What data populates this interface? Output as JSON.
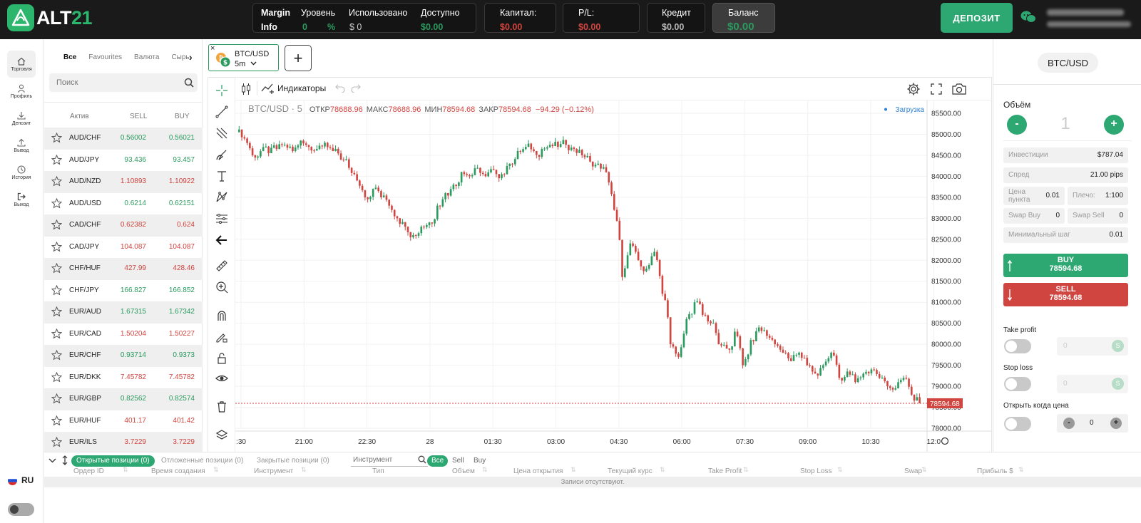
{
  "app": {
    "logo_prefix": "ALT",
    "logo_suffix": "21"
  },
  "header": {
    "margin_label": "Margin",
    "info_label": "Info",
    "level_label": "Уровень",
    "level_value": "0",
    "level_unit": "%",
    "used_label": "Использовано",
    "used_value": "$ 0",
    "available_label": "Доступно",
    "available_value": "$0.00",
    "capital_label": "Капитал:",
    "capital_value": "$0.00",
    "pl_label": "P/L:",
    "pl_value": "$0.00",
    "credit_label": "Кредит",
    "credit_value": "$0.00",
    "balance_label": "Баланс",
    "balance_value": "$0.00",
    "deposit_button": "ДЕПОЗИТ"
  },
  "nav": {
    "items": [
      {
        "label": "Торговля",
        "icon": "home-icon"
      },
      {
        "label": "Профиль",
        "icon": "user-icon"
      },
      {
        "label": "Депозит",
        "icon": "download-icon"
      },
      {
        "label": "Вывод",
        "icon": "upload-icon"
      },
      {
        "label": "История",
        "icon": "clock-icon"
      },
      {
        "label": "Выход",
        "icon": "logout-icon"
      }
    ],
    "language": "RU"
  },
  "market": {
    "tabs": [
      "Все",
      "Favourites",
      "Валюта",
      "Сырь"
    ],
    "search_placeholder": "Поиск",
    "columns": {
      "asset": "Актив",
      "sell": "SELL",
      "buy": "BUY"
    },
    "rows": [
      {
        "symbol": "AUD/CHF",
        "sell": "0.56002",
        "buy": "0.56021",
        "dir": "up"
      },
      {
        "symbol": "AUD/JPY",
        "sell": "93.436",
        "buy": "93.457",
        "dir": "up"
      },
      {
        "symbol": "AUD/NZD",
        "sell": "1.10893",
        "buy": "1.10922",
        "dir": "down"
      },
      {
        "symbol": "AUD/USD",
        "sell": "0.6214",
        "buy": "0.62151",
        "dir": "up"
      },
      {
        "symbol": "CAD/CHF",
        "sell": "0.62382",
        "buy": "0.624",
        "dir": "down"
      },
      {
        "symbol": "CAD/JPY",
        "sell": "104.087",
        "buy": "104.087",
        "dir": "down"
      },
      {
        "symbol": "CHF/HUF",
        "sell": "427.99",
        "buy": "428.46",
        "dir": "down"
      },
      {
        "symbol": "CHF/JPY",
        "sell": "166.827",
        "buy": "166.852",
        "dir": "up"
      },
      {
        "symbol": "EUR/AUD",
        "sell": "1.67315",
        "buy": "1.67342",
        "dir": "up"
      },
      {
        "symbol": "EUR/CAD",
        "sell": "1.50204",
        "buy": "1.50227",
        "dir": "down"
      },
      {
        "symbol": "EUR/CHF",
        "sell": "0.93714",
        "buy": "0.9373",
        "dir": "up"
      },
      {
        "symbol": "EUR/DKK",
        "sell": "7.45782",
        "buy": "7.45782",
        "dir": "down"
      },
      {
        "symbol": "EUR/GBP",
        "sell": "0.82562",
        "buy": "0.82574",
        "dir": "up"
      },
      {
        "symbol": "EUR/HUF",
        "sell": "401.17",
        "buy": "401.42",
        "dir": "down"
      },
      {
        "symbol": "EUR/ILS",
        "sell": "3.7229",
        "buy": "3.7229",
        "dir": "down"
      }
    ]
  },
  "chart_tab": {
    "symbol": "BTC/USD",
    "interval": "5m",
    "close_glyph": "×",
    "add_glyph": "+"
  },
  "chart_toolbar": {
    "indicators": "Индикаторы"
  },
  "chart_legend": {
    "title": "BTC/USD · 5",
    "open_label": "ОТКР",
    "open": "78688.96",
    "high_label": "МАКС",
    "high": "78688.96",
    "low_label": "МИН",
    "low": "78594.68",
    "close_label": "ЗАКР",
    "close": "78594.68",
    "change": "−94.29 (−0.12%)",
    "loading": "Загрузка"
  },
  "chart_data": {
    "type": "candlestick",
    "symbol": "BTC/USD",
    "interval": "5",
    "x_tick_labels": [
      ":30",
      "21:00",
      "22:30",
      "28",
      "01:30",
      "03:00",
      "04:30",
      "06:00",
      "07:30",
      "09:00",
      "10:30",
      "12:0"
    ],
    "y_tick_labels": [
      "85500.00",
      "85000.00",
      "84500.00",
      "84000.00",
      "83500.00",
      "83000.00",
      "82500.00",
      "82000.00",
      "81500.00",
      "81000.00",
      "80500.00",
      "80000.00",
      "79500.00",
      "79000.00",
      "78500.00",
      "78000.00"
    ],
    "ylim": [
      78000,
      85500
    ],
    "last_price": 78594.68,
    "last_price_label": "78594.68",
    "series": [
      {
        "name": "close",
        "values": [
          84900,
          84500,
          84600,
          84550,
          84650,
          84750,
          84600,
          84850,
          84700,
          84650,
          84800,
          84600,
          84400,
          84200,
          83900,
          83500,
          83700,
          83500,
          83300,
          83000,
          82800,
          82600,
          82800,
          82900,
          83300,
          83600,
          83800,
          84100,
          84000,
          84200,
          84000,
          84150,
          84050,
          84300,
          84600,
          84700,
          84600,
          84650,
          84750,
          84700,
          84750,
          84650,
          84500,
          84350,
          84300,
          84100,
          83200,
          81600,
          82400,
          82000,
          81800,
          82200,
          81200,
          80000,
          79700,
          80600,
          81000,
          80700,
          80500,
          80000,
          79900,
          80300,
          79500,
          80100,
          80400,
          80200,
          80000,
          79800,
          79600,
          79800,
          79500,
          79300,
          79500,
          79800,
          79200,
          79350,
          79100,
          79300,
          79400,
          79200,
          79000,
          78950,
          79200,
          78800,
          78594.68
        ]
      }
    ]
  },
  "orders": {
    "tabs": [
      "Открытые позиции (0)",
      "Отложенные позиции (0)",
      "Закрытые позиции (0)"
    ],
    "instrument_placeholder": "Инструмент",
    "filters": [
      "Все",
      "Sell",
      "Buy"
    ],
    "columns": [
      "Ордер ID",
      "Время создания",
      "Инструмент",
      "Тип",
      "Объем",
      "Цена открытия",
      "Текущий курс",
      "Take Profit",
      "Stop Loss",
      "Swap",
      "Прибыль $"
    ],
    "empty": "Записи отсутствуют."
  },
  "trade": {
    "symbol": "BTC/USD",
    "volume_label": "Объём",
    "volume_value": "1",
    "minus": "-",
    "plus": "+",
    "investment_label": "Инвестиции",
    "investment_value": "$787.04",
    "spread_label": "Спред",
    "spread_value": "21.00 pips",
    "point_price_label_1": "Цена",
    "point_price_label_2": "пункта",
    "point_price_value": "0.01",
    "leverage_label": "Плечо:",
    "leverage_value": "1:100",
    "swap_buy_label": "Swap Buy",
    "swap_buy_value": "0",
    "swap_sell_label": "Swap Sell",
    "swap_sell_value": "0",
    "min_step_label": "Минимальный шаг",
    "min_step_value": "0.01",
    "buy_label": "BUY",
    "buy_price": "78594.68",
    "sell_label": "SELL",
    "sell_price": "78594.68",
    "take_profit_label": "Take profit",
    "take_profit_value": "0",
    "stop_loss_label": "Stop loss",
    "stop_loss_value": "0",
    "open_when_label": "Открыть когда цена",
    "open_when_value": "0",
    "s_glyph": "S"
  },
  "colors": {
    "green": "#2ea872",
    "red": "#d0453f",
    "dark": "#1a1a1a"
  }
}
